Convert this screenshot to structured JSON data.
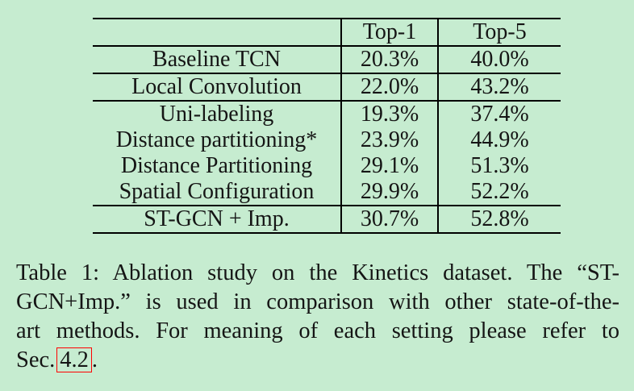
{
  "page": {
    "background_color": "#c6ecd0",
    "text_color": "#151515",
    "rule_color": "#000000"
  },
  "table": {
    "columns": [
      "",
      "Top-1",
      "Top-5"
    ],
    "rows": [
      {
        "label": "Baseline TCN",
        "top1": "20.3%",
        "top5": "40.0%"
      },
      {
        "label": "Local Convolution",
        "top1": "22.0%",
        "top5": "43.2%"
      },
      {
        "label": "Uni-labeling",
        "top1": "19.3%",
        "top5": "37.4%"
      },
      {
        "label": "Distance partitioning*",
        "top1": "23.9%",
        "top5": "44.9%"
      },
      {
        "label": "Distance Partitioning",
        "top1": "29.1%",
        "top5": "51.3%"
      },
      {
        "label": "Spatial Configuration",
        "top1": "29.9%",
        "top5": "52.2%"
      },
      {
        "label": "ST-GCN + Imp.",
        "top1": "30.7%",
        "top5": "52.8%"
      }
    ]
  },
  "caption": {
    "line1": "Table 1: Ablation study on the Kinetics dataset. The “ST-",
    "line2": "GCN+Imp.” is used in comparison with other state-of-the-",
    "line3": "art methods. For meaning of each setting please refer to",
    "line4_prefix": "Sec.",
    "section_link": "4.2",
    "line4_suffix": ".",
    "link_box_color": "#ff0000"
  }
}
